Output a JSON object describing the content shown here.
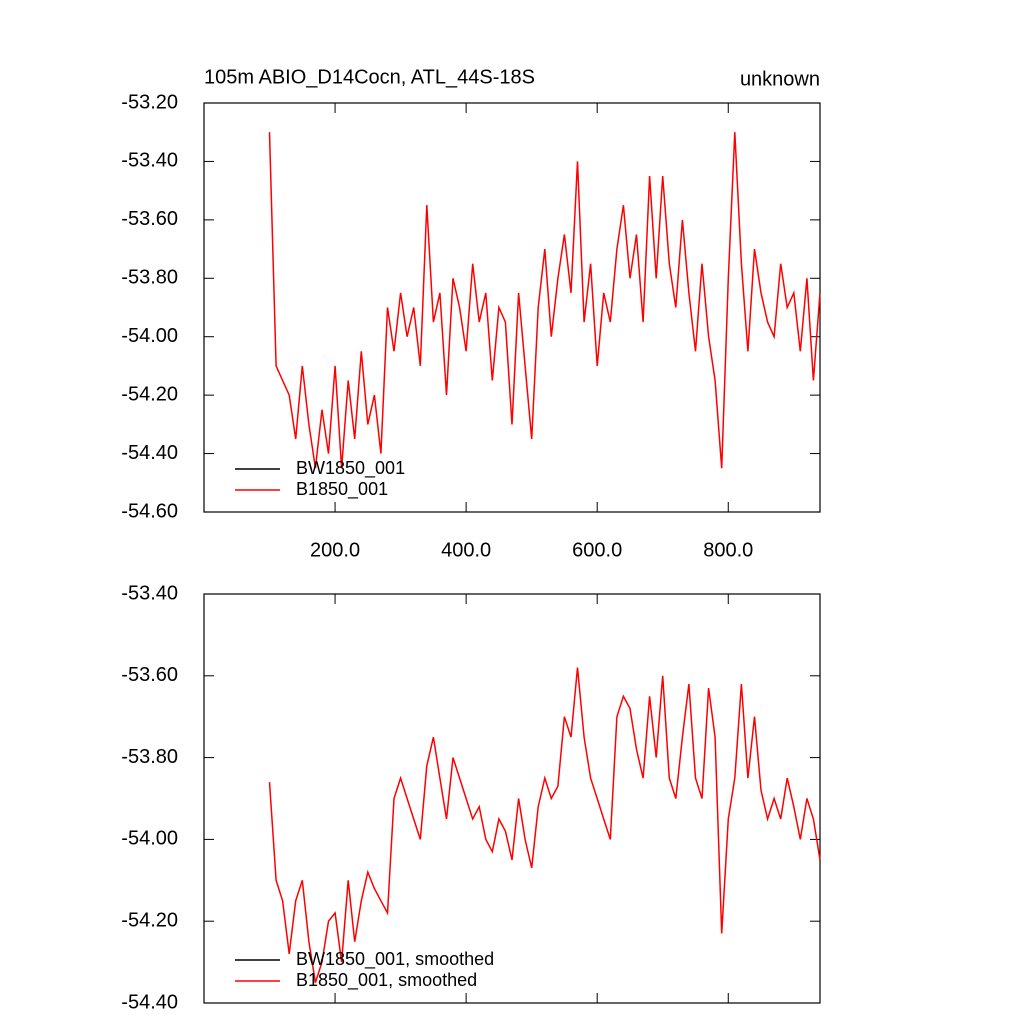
{
  "chart_data": [
    {
      "type": "line",
      "title": "105m ABIO_D14Cocn, ATL_44S-18S",
      "right_label": "unknown",
      "x": [
        100,
        110,
        120,
        130,
        140,
        150,
        160,
        170,
        180,
        190,
        200,
        210,
        220,
        230,
        240,
        250,
        260,
        270,
        280,
        290,
        300,
        310,
        320,
        330,
        340,
        350,
        360,
        370,
        380,
        390,
        400,
        410,
        420,
        430,
        440,
        450,
        460,
        470,
        480,
        490,
        500,
        510,
        520,
        530,
        540,
        550,
        560,
        570,
        580,
        590,
        600,
        610,
        620,
        630,
        640,
        650,
        660,
        670,
        680,
        690,
        700,
        710,
        720,
        730,
        740,
        750,
        760,
        770,
        780,
        790,
        800,
        810,
        820,
        830,
        840,
        850,
        860,
        870,
        880,
        890,
        900,
        910,
        920,
        930,
        940
      ],
      "series": [
        {
          "name": "BW1850_001",
          "color": "#000000",
          "values": [
            null,
            null,
            null,
            null,
            null,
            null,
            null,
            null,
            null,
            null,
            null,
            null,
            null,
            null,
            null,
            null,
            null,
            null,
            null,
            null,
            null,
            null,
            null,
            null,
            null,
            null,
            null,
            null,
            null,
            null,
            null,
            null,
            null,
            null,
            null,
            null,
            null,
            null,
            null,
            null,
            null,
            null,
            null,
            null,
            null,
            null,
            null,
            null,
            null,
            null,
            null,
            null,
            null,
            null,
            null,
            null,
            null,
            null,
            null,
            null,
            null,
            null,
            null,
            null,
            null,
            null,
            null,
            null,
            null,
            null,
            null,
            null,
            null,
            null,
            null,
            null,
            null,
            null,
            null,
            null,
            null,
            null,
            null,
            null,
            null
          ]
        },
        {
          "name": "B1850_001",
          "color": "#ff0000",
          "values": [
            -53.3,
            -54.1,
            -54.15,
            -54.2,
            -54.35,
            -54.1,
            -54.3,
            -54.45,
            -54.25,
            -54.4,
            -54.1,
            -54.45,
            -54.15,
            -54.35,
            -54.05,
            -54.3,
            -54.2,
            -54.4,
            -53.9,
            -54.05,
            -53.85,
            -54.0,
            -53.9,
            -54.1,
            -53.55,
            -53.95,
            -53.85,
            -54.2,
            -53.8,
            -53.9,
            -54.05,
            -53.75,
            -53.95,
            -53.85,
            -54.15,
            -53.9,
            -53.95,
            -54.3,
            -53.85,
            -54.1,
            -54.35,
            -53.9,
            -53.7,
            -54.0,
            -53.8,
            -53.65,
            -53.85,
            -53.4,
            -53.95,
            -53.75,
            -54.1,
            -53.85,
            -53.95,
            -53.7,
            -53.55,
            -53.8,
            -53.65,
            -53.95,
            -53.45,
            -53.8,
            -53.45,
            -53.75,
            -53.9,
            -53.6,
            -53.85,
            -54.05,
            -53.75,
            -54.0,
            -54.15,
            -54.45,
            -53.8,
            -53.3,
            -53.75,
            -54.05,
            -53.7,
            -53.85,
            -53.95,
            -54.0,
            -53.75,
            -53.9,
            -53.85,
            -54.05,
            -53.8,
            -54.15,
            -53.85
          ]
        }
      ],
      "xlim": [
        0,
        940
      ],
      "xticks": [
        {
          "value": 200,
          "label": "200.0"
        },
        {
          "value": 400,
          "label": "400.0"
        },
        {
          "value": 600,
          "label": "600.0"
        },
        {
          "value": 800,
          "label": "800.0"
        }
      ],
      "ylim": [
        -54.6,
        -53.2
      ],
      "yticks": [
        {
          "value": -54.6,
          "label": "-54.60"
        },
        {
          "value": -54.4,
          "label": "-54.40"
        },
        {
          "value": -54.2,
          "label": "-54.20"
        },
        {
          "value": -54.0,
          "label": "-54.00"
        },
        {
          "value": -53.8,
          "label": "-53.80"
        },
        {
          "value": -53.6,
          "label": "-53.60"
        },
        {
          "value": -53.4,
          "label": "-53.40"
        },
        {
          "value": -53.2,
          "label": "-53.20"
        }
      ],
      "legend": "lower left"
    },
    {
      "type": "line",
      "x": [
        100,
        110,
        120,
        130,
        140,
        150,
        160,
        170,
        180,
        190,
        200,
        210,
        220,
        230,
        240,
        250,
        260,
        270,
        280,
        290,
        300,
        310,
        320,
        330,
        340,
        350,
        360,
        370,
        380,
        390,
        400,
        410,
        420,
        430,
        440,
        450,
        460,
        470,
        480,
        490,
        500,
        510,
        520,
        530,
        540,
        550,
        560,
        570,
        580,
        590,
        600,
        610,
        620,
        630,
        640,
        650,
        660,
        670,
        680,
        690,
        700,
        710,
        720,
        730,
        740,
        750,
        760,
        770,
        780,
        790,
        800,
        810,
        820,
        830,
        840,
        850,
        860,
        870,
        880,
        890,
        900,
        910,
        920,
        930,
        940
      ],
      "series": [
        {
          "name": "BW1850_001, smoothed",
          "color": "#000000",
          "values": [
            null,
            null,
            null,
            null,
            null,
            null,
            null,
            null,
            null,
            null,
            null,
            null,
            null,
            null,
            null,
            null,
            null,
            null,
            null,
            null,
            null,
            null,
            null,
            null,
            null,
            null,
            null,
            null,
            null,
            null,
            null,
            null,
            null,
            null,
            null,
            null,
            null,
            null,
            null,
            null,
            null,
            null,
            null,
            null,
            null,
            null,
            null,
            null,
            null,
            null,
            null,
            null,
            null,
            null,
            null,
            null,
            null,
            null,
            null,
            null,
            null,
            null,
            null,
            null,
            null,
            null,
            null,
            null,
            null,
            null,
            null,
            null,
            null,
            null,
            null,
            null,
            null,
            null,
            null,
            null,
            null,
            null,
            null,
            null,
            null
          ]
        },
        {
          "name": "B1850_001, smoothed",
          "color": "#ff0000",
          "values": [
            -53.86,
            -54.1,
            -54.15,
            -54.28,
            -54.15,
            -54.1,
            -54.25,
            -54.35,
            -54.3,
            -54.2,
            -54.18,
            -54.3,
            -54.1,
            -54.25,
            -54.15,
            -54.08,
            -54.12,
            -54.15,
            -54.18,
            -53.9,
            -53.85,
            -53.9,
            -53.95,
            -54.0,
            -53.82,
            -53.75,
            -53.85,
            -53.95,
            -53.8,
            -53.85,
            -53.9,
            -53.95,
            -53.92,
            -54.0,
            -54.03,
            -53.95,
            -53.98,
            -54.05,
            -53.9,
            -54.0,
            -54.07,
            -53.92,
            -53.85,
            -53.9,
            -53.87,
            -53.7,
            -53.75,
            -53.58,
            -53.75,
            -53.85,
            -53.9,
            -53.95,
            -54.0,
            -53.7,
            -53.65,
            -53.68,
            -53.78,
            -53.85,
            -53.65,
            -53.8,
            -53.6,
            -53.85,
            -53.9,
            -53.75,
            -53.62,
            -53.85,
            -53.9,
            -53.63,
            -53.75,
            -54.23,
            -53.95,
            -53.85,
            -53.62,
            -53.85,
            -53.7,
            -53.88,
            -53.95,
            -53.9,
            -53.95,
            -53.85,
            -53.92,
            -54.0,
            -53.9,
            -53.95,
            -54.05
          ]
        }
      ],
      "xlim": [
        0,
        940
      ],
      "xticks": [
        200,
        400,
        600,
        800
      ],
      "ylim": [
        -54.4,
        -53.4
      ],
      "yticks": [
        {
          "value": -54.4,
          "label": "-54.40"
        },
        {
          "value": -54.2,
          "label": "-54.20"
        },
        {
          "value": -54.0,
          "label": "-54.00"
        },
        {
          "value": -53.8,
          "label": "-53.80"
        },
        {
          "value": -53.6,
          "label": "-53.60"
        },
        {
          "value": -53.4,
          "label": "-53.40"
        }
      ],
      "legend": "lower left"
    }
  ]
}
